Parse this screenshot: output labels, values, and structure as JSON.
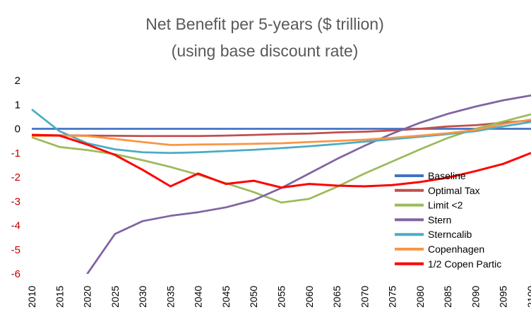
{
  "chart_data": {
    "type": "line",
    "title": "Net Benefit per 5-years ($ trillion)",
    "subtitle": "(using base discount rate)",
    "xlabel": "",
    "ylabel": "",
    "x": [
      2010,
      2015,
      2020,
      2025,
      2030,
      2035,
      2040,
      2045,
      2050,
      2055,
      2060,
      2065,
      2070,
      2075,
      2080,
      2085,
      2090,
      2095,
      2100
    ],
    "x_tick_labels": [
      "2010",
      "2015",
      "2020",
      "2025",
      "2030",
      "2035",
      "2040",
      "2045",
      "2050",
      "2055",
      "2060",
      "2065",
      "2070",
      "2075",
      "2080",
      "2085",
      "2090",
      "2095",
      "2100"
    ],
    "ylim": [
      -6,
      2
    ],
    "y_ticks": [
      2,
      1,
      0,
      -1,
      -2,
      -3,
      -4,
      -5,
      -6
    ],
    "y_tick_labels": [
      "2",
      "1",
      "0",
      "-1",
      "-2",
      "-3",
      "-4",
      "-5",
      "-6"
    ],
    "y_tick_colors": {
      "positive": "#000000",
      "negative": "#c00000"
    },
    "grid": false,
    "legend_position": "bottom-right",
    "series": [
      {
        "name": "Baseline",
        "color": "#4472c4",
        "values": [
          0,
          0,
          0,
          0,
          0,
          0,
          0,
          0,
          0,
          0,
          0,
          0,
          0,
          0,
          0,
          0,
          0,
          0,
          0
        ]
      },
      {
        "name": "Optimal Tax",
        "color": "#c0504d",
        "values": [
          -0.25,
          -0.27,
          -0.28,
          -0.29,
          -0.3,
          -0.3,
          -0.3,
          -0.28,
          -0.25,
          -0.22,
          -0.2,
          -0.15,
          -0.12,
          -0.07,
          0,
          0.1,
          0.15,
          0.25,
          0.35
        ]
      },
      {
        "name": "Limit <2",
        "color": "#9bbb59",
        "values": [
          -0.35,
          -0.75,
          -0.88,
          -1.05,
          -1.3,
          -1.58,
          -1.9,
          -2.25,
          -2.62,
          -3.05,
          -2.9,
          -2.4,
          -1.85,
          -1.35,
          -0.85,
          -0.38,
          0,
          0.3,
          0.6
        ]
      },
      {
        "name": "Stern",
        "color": "#8064a2",
        "values": [
          null,
          null,
          -6.0,
          -4.35,
          -3.82,
          -3.6,
          -3.45,
          -3.25,
          -2.95,
          -2.45,
          -1.85,
          -1.25,
          -0.7,
          -0.2,
          0.25,
          0.62,
          0.92,
          1.18,
          1.38
        ]
      },
      {
        "name": "Sterncalib",
        "color": "#4bacc6",
        "values": [
          0.8,
          -0.1,
          -0.6,
          -0.85,
          -0.97,
          -1.0,
          -0.97,
          -0.92,
          -0.87,
          -0.8,
          -0.72,
          -0.63,
          -0.53,
          -0.43,
          -0.33,
          -0.22,
          -0.1,
          0.1,
          0.28
        ]
      },
      {
        "name": "Copenhagen",
        "color": "#f79646",
        "values": [
          -0.3,
          -0.28,
          -0.3,
          -0.42,
          -0.55,
          -0.67,
          -0.65,
          -0.64,
          -0.62,
          -0.6,
          -0.55,
          -0.5,
          -0.45,
          -0.37,
          -0.28,
          -0.18,
          -0.05,
          0.2,
          0.38
        ]
      },
      {
        "name": "1/2 Copen Partic",
        "color": "#ff0000",
        "values": [
          -0.25,
          -0.28,
          -0.65,
          -1.08,
          -1.7,
          -2.38,
          -1.85,
          -2.28,
          -2.15,
          -2.43,
          -2.28,
          -2.35,
          -2.38,
          -2.33,
          -2.2,
          -2.02,
          -1.75,
          -1.45,
          -1.0
        ]
      }
    ]
  }
}
